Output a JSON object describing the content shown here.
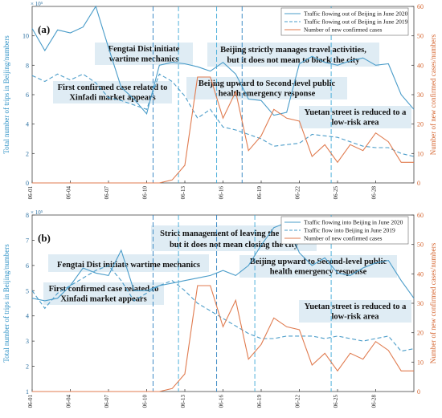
{
  "chart_data": [
    {
      "type": "line",
      "panel_label": "(a)",
      "exponent_label": "× 10⁵",
      "xlabel": "",
      "ylabel": "Total number of trips in Beijing/numbers",
      "ylabel_right": "Number of new confirmed cases/numbers",
      "x_ticks": [
        "06-01",
        "06-04",
        "06-07",
        "06-10",
        "06-13",
        "06-16",
        "06-19",
        "06-22",
        "06-25",
        "06-28"
      ],
      "ylim": [
        0,
        12
      ],
      "y_ticks": [
        0,
        2,
        4,
        6,
        8,
        10
      ],
      "ylim_right": [
        0,
        60
      ],
      "y_ticks_right": [
        0,
        10,
        20,
        30,
        40,
        50,
        60
      ],
      "legend_position": "top-right",
      "series": [
        {
          "name": "Traffic flowing out of Beijing in June 2020",
          "axis": "left",
          "style": "solid",
          "color": "#4a9cc9",
          "values": [
            10.5,
            9.0,
            10.4,
            10.2,
            10.6,
            12.0,
            9.2,
            6.5,
            5.7,
            4.7,
            8.0,
            8.2,
            8.1,
            7.9,
            7.6,
            8.2,
            7.4,
            5.7,
            5.6,
            4.6,
            4.8,
            8.1,
            8.6,
            8.2,
            8.0,
            8.3,
            8.5,
            8.0,
            8.1,
            6.0,
            5.0
          ]
        },
        {
          "name": "Traffic flowing out of Beijing in June 2019",
          "axis": "left",
          "style": "dashed",
          "color": "#4a9cc9",
          "values": [
            7.3,
            6.9,
            7.4,
            7.0,
            7.4,
            6.8,
            5.8,
            5.6,
            5.3,
            5.0,
            7.4,
            6.9,
            5.9,
            4.4,
            5.0,
            3.8,
            3.6,
            3.3,
            3.0,
            2.5,
            2.6,
            2.7,
            3.3,
            3.2,
            3.1,
            2.8,
            2.5,
            2.4,
            2.4,
            2.0,
            1.8
          ]
        },
        {
          "name": "Number of new confirmed cases",
          "axis": "right",
          "style": "solid",
          "color": "#e07b4f",
          "values": [
            0,
            0,
            0,
            0,
            0,
            0,
            0,
            0,
            0,
            0,
            0,
            1,
            6,
            36,
            36,
            22,
            31,
            11,
            16,
            25,
            22,
            21,
            9,
            13,
            7,
            13,
            11,
            17,
            14,
            7,
            7
          ]
        }
      ],
      "annotations": [
        {
          "lines": [
            "Fengtai Dist initiate",
            "wartime mechanics"
          ]
        },
        {
          "lines": [
            "Beijing strictly manages travel activities,",
            "but it does not mean to block the city"
          ]
        },
        {
          "lines": [
            "First confirmed case related to",
            "Xinfadi market appears"
          ]
        },
        {
          "lines": [
            "Beijing upward to Second-level public",
            "health emergency response"
          ]
        },
        {
          "lines": [
            "Yuetan street is reduced to a",
            "low-risk area"
          ]
        }
      ]
    },
    {
      "type": "line",
      "panel_label": "(b)",
      "exponent_label": "× 10⁵",
      "xlabel": "",
      "ylabel": "Total number of trips in Beijing/numbers",
      "ylabel_right": "Number of new confirmed cases/numbers",
      "x_ticks": [
        "06-01",
        "06-04",
        "06-07",
        "06-10",
        "06-13",
        "06-16",
        "06-19",
        "06-22",
        "06-25",
        "06-28"
      ],
      "ylim": [
        1,
        8
      ],
      "y_ticks": [
        1,
        2,
        3,
        4,
        5,
        6,
        7,
        8
      ],
      "ylim_right": [
        0,
        60
      ],
      "y_ticks_right": [
        0,
        10,
        20,
        30,
        40,
        50,
        60
      ],
      "legend_position": "top-right",
      "series": [
        {
          "name": "Traffic flowing into Beijing in June 2020",
          "axis": "left",
          "style": "solid",
          "color": "#4a9cc9",
          "values": [
            4.7,
            4.6,
            4.7,
            5.2,
            5.9,
            5.7,
            5.6,
            6.6,
            5.0,
            5.0,
            5.2,
            5.3,
            5.4,
            5.5,
            5.6,
            5.8,
            5.6,
            6.0,
            6.8,
            7.5,
            7.7,
            6.5,
            6.0,
            6.3,
            5.7,
            5.6,
            5.9,
            6.1,
            6.2,
            5.4,
            4.7
          ]
        },
        {
          "name": "Traffic flow into Beijing in June 2019",
          "axis": "left",
          "style": "dashed",
          "color": "#4a9cc9",
          "values": [
            5.0,
            4.3,
            4.9,
            5.2,
            5.5,
            5.8,
            6.0,
            5.4,
            4.6,
            4.9,
            5.2,
            5.4,
            5.0,
            4.5,
            4.2,
            3.9,
            3.6,
            3.3,
            3.1,
            3.1,
            3.2,
            3.2,
            3.2,
            3.1,
            3.2,
            3.1,
            3.0,
            3.1,
            3.2,
            2.6,
            2.7
          ]
        },
        {
          "name": "Number of new confirmed cases",
          "axis": "right",
          "style": "solid",
          "color": "#e07b4f",
          "values": [
            0,
            0,
            0,
            0,
            0,
            0,
            0,
            0,
            0,
            0,
            0,
            1,
            6,
            36,
            36,
            22,
            31,
            11,
            16,
            25,
            22,
            21,
            9,
            13,
            7,
            13,
            11,
            17,
            14,
            7,
            7
          ]
        }
      ],
      "annotations": [
        {
          "lines": [
            "Strict management of leaving the capital,",
            "but it does not mean closing the city"
          ]
        },
        {
          "lines": [
            "Fengtai Dist initiate wartime mechanics"
          ]
        },
        {
          "lines": [
            "Beijing upward to Second-level public",
            "health emergency response"
          ]
        },
        {
          "lines": [
            "First confirmed case related to",
            "Xinfadi market appears"
          ]
        },
        {
          "lines": [
            "Yuetan street is reduced to a",
            "low-risk area"
          ]
        }
      ]
    }
  ]
}
